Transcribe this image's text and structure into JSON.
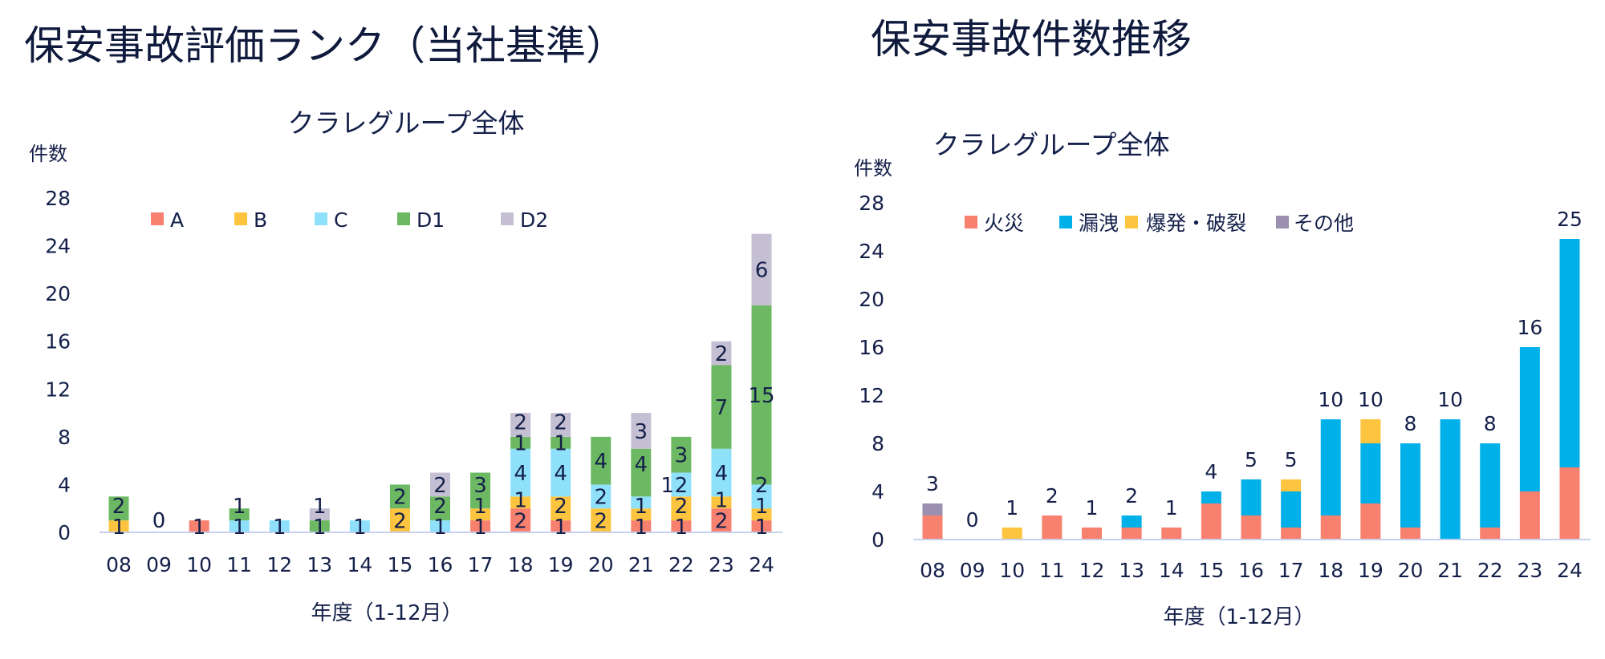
{
  "page": {
    "left_title": "保安事故評価ランク（当社基準）",
    "right_title": "保安事故件数推移"
  },
  "chart_data": [
    {
      "type": "bar",
      "stacked": true,
      "title": "クラレグループ全体",
      "ylabel": "件数",
      "xlabel": "年度（1-12月）",
      "ylim": [
        0,
        28
      ],
      "yticks": [
        0,
        4,
        8,
        12,
        16,
        20,
        24,
        28
      ],
      "grid": false,
      "legend_position": "top",
      "categories": [
        "08",
        "09",
        "10",
        "11",
        "12",
        "13",
        "14",
        "15",
        "16",
        "17",
        "18",
        "19",
        "20",
        "21",
        "22",
        "23",
        "24"
      ],
      "series": [
        {
          "name": "A",
          "color": "#f8806e",
          "values": [
            0,
            0,
            1,
            0,
            0,
            0,
            0,
            0,
            0,
            1,
            2,
            1,
            0,
            1,
            1,
            2,
            1
          ]
        },
        {
          "name": "B",
          "color": "#fdc43f",
          "values": [
            1,
            0,
            0,
            0,
            0,
            0,
            0,
            2,
            0,
            1,
            1,
            2,
            2,
            1,
            2,
            1,
            1
          ]
        },
        {
          "name": "C",
          "color": "#8fe1fb",
          "values": [
            0,
            0,
            0,
            1,
            1,
            0,
            1,
            0,
            1,
            0,
            4,
            4,
            2,
            1,
            2,
            4,
            2
          ]
        },
        {
          "name": "D1",
          "color": "#6db862",
          "values": [
            2,
            0,
            0,
            1,
            0,
            1,
            0,
            2,
            2,
            3,
            1,
            1,
            4,
            4,
            3,
            7,
            15
          ]
        },
        {
          "name": "D2",
          "color": "#c5bfd3",
          "values": [
            0,
            0,
            0,
            0,
            0,
            1,
            0,
            0,
            2,
            0,
            2,
            2,
            0,
            3,
            0,
            2,
            6
          ]
        }
      ],
      "zero_labels": [
        "09"
      ],
      "zero_label_text": "0"
    },
    {
      "type": "bar",
      "stacked": true,
      "title": "クラレグループ全体",
      "ylabel": "件数",
      "xlabel": "年度（1-12月）",
      "ylim": [
        0,
        28
      ],
      "yticks": [
        0,
        4,
        8,
        12,
        16,
        20,
        24,
        28
      ],
      "grid": false,
      "legend_position": "top",
      "categories": [
        "08",
        "09",
        "10",
        "11",
        "12",
        "13",
        "14",
        "15",
        "16",
        "17",
        "18",
        "19",
        "20",
        "21",
        "22",
        "23",
        "24"
      ],
      "series": [
        {
          "name": "火災",
          "color": "#f8806e",
          "values": [
            2,
            0,
            0,
            2,
            1,
            1,
            1,
            3,
            2,
            1,
            2,
            3,
            1,
            0,
            1,
            4,
            6
          ]
        },
        {
          "name": "漏洩",
          "color": "#00b0e8",
          "values": [
            0,
            0,
            0,
            0,
            0,
            1,
            0,
            1,
            3,
            3,
            8,
            5,
            7,
            10,
            7,
            12,
            19
          ]
        },
        {
          "name": "爆発・破裂",
          "color": "#fdc43f",
          "values": [
            0,
            0,
            1,
            0,
            0,
            0,
            0,
            0,
            0,
            1,
            0,
            2,
            0,
            0,
            0,
            0,
            0
          ]
        },
        {
          "name": "その他",
          "color": "#9b90b0",
          "values": [
            1,
            0,
            0,
            0,
            0,
            0,
            0,
            0,
            0,
            0,
            0,
            0,
            0,
            0,
            0,
            0,
            0
          ]
        }
      ],
      "totals": [
        3,
        0,
        1,
        2,
        1,
        2,
        1,
        4,
        5,
        5,
        10,
        10,
        8,
        10,
        8,
        16,
        25
      ]
    }
  ]
}
